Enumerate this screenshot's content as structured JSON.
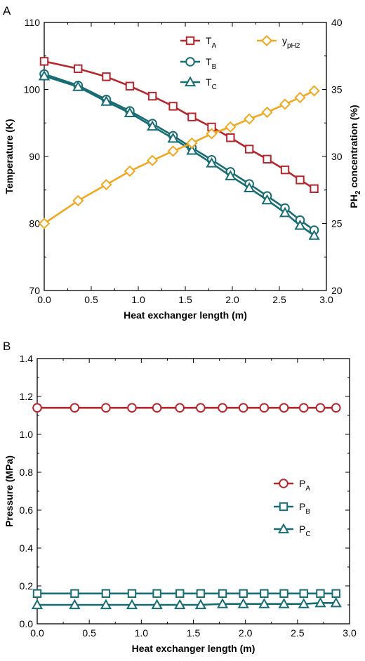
{
  "chart_data": [
    {
      "panel_label": "A",
      "type": "line",
      "xlabel": "Heat exchanger length (m)",
      "ylabel": "Temperature (K)",
      "ylabel_right": {
        "prefix": "PH",
        "sub": "2",
        "suffix": " concentration (%)"
      },
      "xlim": [
        0.0,
        3.0
      ],
      "ylim": [
        70,
        110
      ],
      "ylim_right": [
        20,
        40
      ],
      "x_ticks": [
        "0.0",
        "0.5",
        "1.0",
        "1.5",
        "2.0",
        "2.5",
        "3.0"
      ],
      "y_ticks": [
        "70",
        "80",
        "90",
        "100",
        "110"
      ],
      "y_ticks_right": [
        "20",
        "25",
        "30",
        "35",
        "40"
      ],
      "legend_placement": "top-right",
      "series": [
        {
          "name": "T",
          "sub": "A",
          "marker": "square",
          "color": "#b5272d",
          "axis": "left",
          "x": [
            0.0,
            0.36,
            0.66,
            0.91,
            1.15,
            1.37,
            1.57,
            1.78,
            1.98,
            2.18,
            2.37,
            2.56,
            2.72,
            2.87
          ],
          "y": [
            104.2,
            103.1,
            101.9,
            100.5,
            99.0,
            97.5,
            95.9,
            94.4,
            92.8,
            91.1,
            89.6,
            88.0,
            86.5,
            85.2
          ]
        },
        {
          "name": "T",
          "sub": "B",
          "marker": "circle",
          "color": "#176d73",
          "axis": "left",
          "x": [
            0.0,
            0.36,
            0.66,
            0.91,
            1.15,
            1.37,
            1.57,
            1.78,
            1.98,
            2.18,
            2.37,
            2.56,
            2.72,
            2.87
          ],
          "y": [
            102.3,
            100.6,
            98.5,
            96.8,
            94.9,
            93.1,
            91.3,
            89.5,
            87.7,
            85.9,
            84.1,
            82.3,
            80.5,
            79.0
          ]
        },
        {
          "name": "T",
          "sub": "C",
          "marker": "triangle",
          "color": "#176d73",
          "axis": "left",
          "x": [
            0.0,
            0.36,
            0.66,
            0.91,
            1.15,
            1.37,
            1.57,
            1.78,
            1.98,
            2.18,
            2.37,
            2.56,
            2.72,
            2.87
          ],
          "y": [
            102.0,
            100.4,
            98.2,
            96.5,
            94.5,
            92.7,
            90.9,
            89.0,
            87.1,
            85.3,
            83.5,
            81.6,
            79.7,
            78.2
          ]
        },
        {
          "name": "y",
          "sub": "pH2",
          "marker": "diamond",
          "color": "#f0a820",
          "axis": "right",
          "x": [
            0.0,
            0.36,
            0.66,
            0.91,
            1.15,
            1.37,
            1.57,
            1.78,
            1.98,
            2.18,
            2.37,
            2.56,
            2.72,
            2.87
          ],
          "y": [
            25.0,
            26.7,
            27.9,
            28.9,
            29.7,
            30.4,
            31.0,
            31.7,
            32.2,
            32.8,
            33.3,
            33.9,
            34.4,
            34.9
          ]
        }
      ]
    },
    {
      "panel_label": "B",
      "type": "line",
      "xlabel": "Heat exchanger length (m)",
      "ylabel": "Pressure (MPa)",
      "xlim": [
        0.0,
        3.0
      ],
      "ylim": [
        0.0,
        1.4
      ],
      "x_ticks": [
        "0.0",
        "0.5",
        "1.0",
        "1.5",
        "2.0",
        "2.5",
        "3.0"
      ],
      "y_ticks": [
        "0.0",
        "0.2",
        "0.4",
        "0.6",
        "0.8",
        "1.0",
        "1.2",
        "1.4"
      ],
      "legend_placement": "center-right",
      "series": [
        {
          "name": "P",
          "sub": "A",
          "marker": "circle",
          "color": "#b5272d",
          "x": [
            0.0,
            0.36,
            0.66,
            0.91,
            1.15,
            1.37,
            1.57,
            1.78,
            1.98,
            2.18,
            2.37,
            2.56,
            2.72,
            2.87
          ],
          "y": [
            1.14,
            1.14,
            1.14,
            1.14,
            1.14,
            1.14,
            1.14,
            1.14,
            1.14,
            1.14,
            1.14,
            1.14,
            1.14,
            1.14
          ]
        },
        {
          "name": "P",
          "sub": "B",
          "marker": "square",
          "color": "#176d73",
          "x": [
            0.0,
            0.36,
            0.66,
            0.91,
            1.15,
            1.37,
            1.57,
            1.78,
            1.98,
            2.18,
            2.37,
            2.56,
            2.72,
            2.87
          ],
          "y": [
            0.16,
            0.16,
            0.16,
            0.16,
            0.16,
            0.16,
            0.16,
            0.16,
            0.16,
            0.16,
            0.16,
            0.16,
            0.16,
            0.16
          ]
        },
        {
          "name": "P",
          "sub": "C",
          "marker": "triangle",
          "color": "#176d73",
          "x": [
            0.0,
            0.36,
            0.66,
            0.91,
            1.15,
            1.37,
            1.57,
            1.78,
            1.98,
            2.18,
            2.37,
            2.56,
            2.72,
            2.87
          ],
          "y": [
            0.1,
            0.1,
            0.1,
            0.1,
            0.1,
            0.1,
            0.1,
            0.105,
            0.105,
            0.105,
            0.105,
            0.105,
            0.11,
            0.11
          ]
        }
      ]
    }
  ]
}
